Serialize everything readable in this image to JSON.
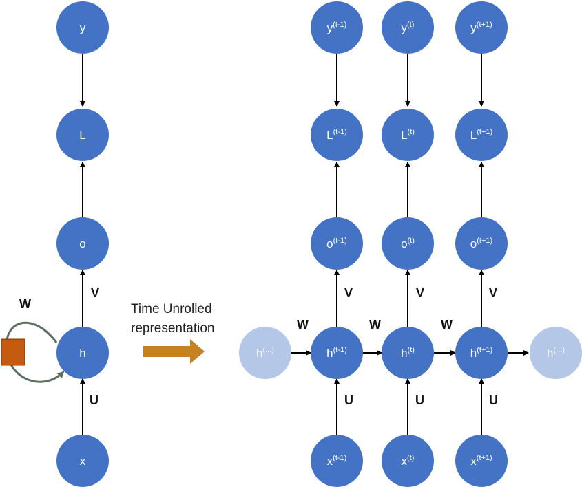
{
  "colors": {
    "node": "#4472C4",
    "node_faded": "#B4C7E7",
    "arrow": "#000000",
    "loop_arrow": "#5A7060",
    "loop_box": "#C55A11",
    "transition_arrow": "#C5821F"
  },
  "folded": {
    "nodes": {
      "y": "y",
      "L": "L",
      "o": "o",
      "h": "h",
      "x": "x"
    },
    "weights": {
      "W": "W",
      "V": "V",
      "U": "U"
    }
  },
  "caption": {
    "line1": "Time Unrolled",
    "line2": "representation"
  },
  "unrolled": {
    "columns": [
      {
        "y": {
          "base": "y",
          "sup": "(t-1)"
        },
        "L": {
          "base": "L",
          "sup": "(t-1)"
        },
        "o": {
          "base": "o",
          "sup": "(t-1)"
        },
        "h": {
          "base": "h",
          "sup": "(t-1)"
        },
        "x": {
          "base": "x",
          "sup": "(t-1)"
        },
        "V": "V",
        "U": "U"
      },
      {
        "y": {
          "base": "y",
          "sup": "(t)"
        },
        "L": {
          "base": "L",
          "sup": "(t)"
        },
        "o": {
          "base": "o",
          "sup": "(t)"
        },
        "h": {
          "base": "h",
          "sup": "(t)"
        },
        "x": {
          "base": "x",
          "sup": "(t)"
        },
        "V": "V",
        "U": "U"
      },
      {
        "y": {
          "base": "y",
          "sup": "(t+1)"
        },
        "L": {
          "base": "L",
          "sup": "(t+1)"
        },
        "o": {
          "base": "o",
          "sup": "(t+1)"
        },
        "h": {
          "base": "h",
          "sup": "(t+1)"
        },
        "x": {
          "base": "x",
          "sup": "(t+1)"
        },
        "V": "V",
        "U": "U"
      }
    ],
    "h_prev": {
      "base": "h",
      "sup": "(...)"
    },
    "h_next": {
      "base": "h",
      "sup": "(...)"
    },
    "recurrent_weights": [
      "W",
      "W",
      "W"
    ]
  }
}
